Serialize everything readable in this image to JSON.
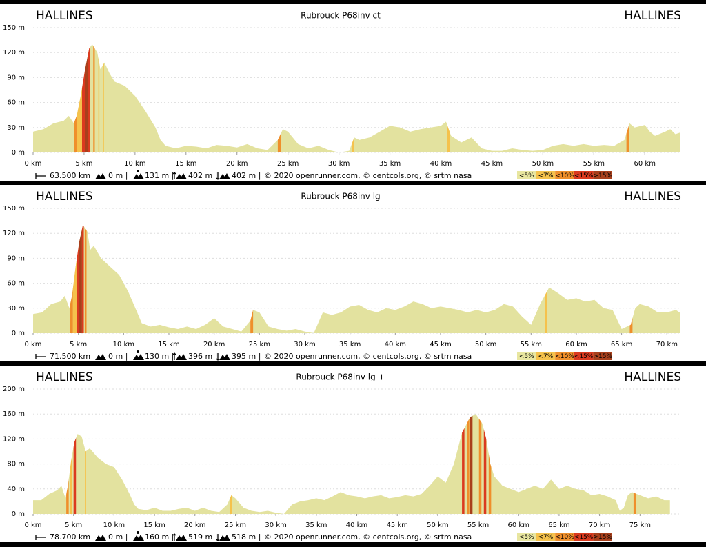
{
  "chart_data": [
    {
      "type": "area",
      "title": "Rubrouck P68inv ct",
      "start": "HALLINES",
      "end": "HALLINES",
      "color": "#e3e29f",
      "x": [
        0,
        1,
        2,
        3,
        3.5,
        4,
        4.3,
        4.7,
        5.1,
        5.5,
        5.8,
        6.3,
        6.6,
        7,
        7.5,
        8,
        9,
        10,
        11,
        12,
        12.5,
        13,
        14,
        15,
        16,
        17,
        18,
        19,
        20,
        21,
        22,
        23,
        24,
        24.5,
        25,
        26,
        27,
        28,
        29,
        30,
        31,
        31.5,
        32,
        33,
        34,
        35,
        36,
        37,
        38,
        39,
        40,
        40.5,
        41,
        42,
        43,
        44,
        45,
        46,
        47,
        48,
        49,
        50,
        51,
        52,
        53,
        54,
        55,
        56,
        57,
        58,
        58.5,
        59,
        60,
        60.5,
        61,
        62,
        62.5,
        63,
        63.5
      ],
      "values": [
        25,
        28,
        35,
        38,
        44,
        35,
        45,
        70,
        100,
        125,
        130,
        120,
        100,
        108,
        95,
        85,
        80,
        68,
        50,
        30,
        15,
        8,
        5,
        8,
        7,
        5,
        9,
        8,
        6,
        10,
        5,
        3,
        15,
        28,
        25,
        10,
        5,
        8,
        3,
        0,
        2,
        18,
        15,
        18,
        25,
        32,
        30,
        25,
        28,
        30,
        32,
        37,
        20,
        12,
        18,
        5,
        2,
        2,
        5,
        3,
        2,
        3,
        8,
        10,
        8,
        10,
        8,
        9,
        8,
        15,
        35,
        30,
        33,
        25,
        20,
        25,
        28,
        22,
        24
      ],
      "xlim": [
        0,
        63.5
      ],
      "ylim": [
        0,
        150
      ],
      "yticks": [
        {
          "value": 0,
          "label": "0 m"
        },
        {
          "value": 30,
          "label": "30 m"
        },
        {
          "value": 60,
          "label": "60 m"
        },
        {
          "value": 90,
          "label": "90 m"
        },
        {
          "value": 120,
          "label": "120 m"
        },
        {
          "value": 150,
          "label": "150 m"
        }
      ],
      "xticks": [
        {
          "value": 0,
          "label": "0 km"
        },
        {
          "value": 5,
          "label": "5 km"
        },
        {
          "value": 10,
          "label": "10 km"
        },
        {
          "value": 15,
          "label": "15 km"
        },
        {
          "value": 20,
          "label": "20 km"
        },
        {
          "value": 25,
          "label": "25 km"
        },
        {
          "value": 30,
          "label": "30 km"
        },
        {
          "value": 35,
          "label": "35 km"
        },
        {
          "value": 40,
          "label": "40 km"
        },
        {
          "value": 45,
          "label": "45 km"
        },
        {
          "value": 50,
          "label": "50 km"
        },
        {
          "value": 55,
          "label": "55 km"
        },
        {
          "value": 60,
          "label": "60 km"
        }
      ],
      "grid": true,
      "bands": [
        {
          "x0": 4.0,
          "x1": 4.3,
          "color": "#ef8f2b"
        },
        {
          "x0": 4.3,
          "x1": 4.8,
          "color": "#f5c24c"
        },
        {
          "x0": 4.8,
          "x1": 5.1,
          "color": "#db3a1f"
        },
        {
          "x0": 5.1,
          "x1": 5.35,
          "color": "#a8401c"
        },
        {
          "x0": 5.35,
          "x1": 5.6,
          "color": "#db3a1f"
        },
        {
          "x0": 5.9,
          "x1": 6.05,
          "color": "#ef8f2b"
        },
        {
          "x0": 6.4,
          "x1": 6.5,
          "color": "#f5c24c"
        },
        {
          "x0": 6.85,
          "x1": 6.95,
          "color": "#f5c24c"
        },
        {
          "x0": 24.0,
          "x1": 24.3,
          "color": "#ef8f2b"
        },
        {
          "x0": 31.3,
          "x1": 31.5,
          "color": "#f5c24c"
        },
        {
          "x0": 40.6,
          "x1": 40.85,
          "color": "#f5c24c"
        },
        {
          "x0": 58.2,
          "x1": 58.45,
          "color": "#ef8f2b"
        }
      ],
      "stats": [
        "63.500 km |",
        "0 m |",
        "131 m |",
        "402 m |",
        "402 m |"
      ],
      "credits": "© 2020 openrunner.com, © centcols.org, © srtm nasa",
      "legend": [
        {
          "label": "<5%",
          "color": "#e8e6a0"
        },
        {
          "label": "<7%",
          "color": "#f5c24c"
        },
        {
          "label": "<10%",
          "color": "#ef8f2b"
        },
        {
          "label": "<15%",
          "color": "#db3a1f"
        },
        {
          "label": ">15%",
          "color": "#a8401c"
        }
      ]
    },
    {
      "type": "area",
      "title": "Rubrouck P68inv lg",
      "start": "HALLINES",
      "end": "HALLINES",
      "color": "#e3e29f",
      "x": [
        0,
        1,
        2,
        3,
        3.5,
        4,
        4.3,
        4.7,
        5.1,
        5.5,
        6,
        6.3,
        6.7,
        7.5,
        8.5,
        9.5,
        10.5,
        11.5,
        12,
        13,
        14,
        15,
        16,
        17,
        18,
        19,
        20,
        21,
        22,
        23,
        24,
        24.3,
        25,
        26,
        27,
        28,
        29,
        30,
        31,
        32,
        33,
        34,
        35,
        36,
        37,
        38,
        39,
        40,
        41,
        42,
        43,
        44,
        45,
        46,
        47,
        48,
        49,
        50,
        51,
        52,
        53,
        54,
        55,
        56,
        57,
        58,
        59,
        60,
        61,
        62,
        63,
        64,
        65,
        66,
        66.5,
        67,
        68,
        69,
        70,
        71,
        71.5
      ],
      "values": [
        23,
        25,
        35,
        38,
        45,
        30,
        45,
        80,
        110,
        130,
        122,
        100,
        105,
        90,
        80,
        70,
        50,
        25,
        12,
        8,
        10,
        7,
        5,
        8,
        5,
        10,
        18,
        8,
        5,
        2,
        15,
        28,
        25,
        8,
        5,
        3,
        5,
        2,
        0,
        25,
        22,
        25,
        32,
        34,
        28,
        25,
        30,
        28,
        32,
        38,
        35,
        30,
        32,
        30,
        28,
        25,
        28,
        25,
        28,
        35,
        32,
        20,
        10,
        35,
        55,
        48,
        40,
        42,
        38,
        40,
        30,
        28,
        5,
        10,
        30,
        35,
        32,
        25,
        25,
        28,
        24
      ],
      "xlim": [
        0,
        71.5
      ],
      "ylim": [
        0,
        150
      ],
      "yticks": [
        {
          "value": 0,
          "label": "0 m"
        },
        {
          "value": 30,
          "label": "30 m"
        },
        {
          "value": 60,
          "label": "60 m"
        },
        {
          "value": 90,
          "label": "90 m"
        },
        {
          "value": 120,
          "label": "120 m"
        },
        {
          "value": 150,
          "label": "150 m"
        }
      ],
      "xticks": [
        {
          "value": 0,
          "label": "0 km"
        },
        {
          "value": 5,
          "label": "5 km"
        },
        {
          "value": 10,
          "label": "10 km"
        },
        {
          "value": 15,
          "label": "15 km"
        },
        {
          "value": 20,
          "label": "20 km"
        },
        {
          "value": 25,
          "label": "25 km"
        },
        {
          "value": 30,
          "label": "30 km"
        },
        {
          "value": 35,
          "label": "35 km"
        },
        {
          "value": 40,
          "label": "40 km"
        },
        {
          "value": 45,
          "label": "45 km"
        },
        {
          "value": 50,
          "label": "50 km"
        },
        {
          "value": 55,
          "label": "55 km"
        },
        {
          "value": 60,
          "label": "60 km"
        },
        {
          "value": 65,
          "label": "65 km"
        },
        {
          "value": 70,
          "label": "70 km"
        }
      ],
      "grid": true,
      "bands": [
        {
          "x0": 4.1,
          "x1": 4.4,
          "color": "#ef8f2b"
        },
        {
          "x0": 4.4,
          "x1": 4.8,
          "color": "#f5c24c"
        },
        {
          "x0": 4.8,
          "x1": 5.1,
          "color": "#db3a1f"
        },
        {
          "x0": 5.1,
          "x1": 5.4,
          "color": "#a8401c"
        },
        {
          "x0": 5.4,
          "x1": 5.6,
          "color": "#db3a1f"
        },
        {
          "x0": 5.7,
          "x1": 5.9,
          "color": "#ef8f2b"
        },
        {
          "x0": 24.0,
          "x1": 24.3,
          "color": "#ef8f2b"
        },
        {
          "x0": 56.5,
          "x1": 56.8,
          "color": "#f5c24c"
        },
        {
          "x0": 65.9,
          "x1": 66.2,
          "color": "#ef8f2b"
        }
      ],
      "stats": [
        "71.500 km |",
        "0 m |",
        "130 m |",
        "396 m |",
        "395 m |"
      ],
      "credits": "© 2020 openrunner.com, © centcols.org, © srtm nasa",
      "legend": [
        {
          "label": "<5%",
          "color": "#e8e6a0"
        },
        {
          "label": "<7%",
          "color": "#f5c24c"
        },
        {
          "label": "<10%",
          "color": "#ef8f2b"
        },
        {
          "label": "<15%",
          "color": "#db3a1f"
        },
        {
          "label": ">15%",
          "color": "#a8401c"
        }
      ]
    },
    {
      "type": "area",
      "title": "Rubrouck P68inv lg +",
      "start": "HALLINES",
      "end": "HALLINES",
      "color": "#e3e29f",
      "x": [
        0,
        1,
        2,
        3,
        3.5,
        4,
        4.3,
        4.7,
        5.1,
        5.5,
        6,
        6.5,
        7,
        8,
        9,
        10,
        11,
        12,
        12.5,
        13,
        14,
        15,
        16,
        17,
        18,
        19,
        20,
        21,
        22,
        23,
        24,
        24.5,
        25,
        26,
        27,
        28,
        29,
        30,
        31,
        32,
        33,
        34,
        35,
        36,
        37,
        38,
        39,
        40,
        41,
        42,
        43,
        44,
        45,
        46,
        47,
        48,
        49,
        50,
        51,
        52,
        53,
        54,
        54.7,
        55.5,
        56,
        56.5,
        57,
        58,
        59,
        60,
        61,
        62,
        63,
        64,
        65,
        66,
        67,
        68,
        69,
        70,
        71,
        72,
        72.5,
        73,
        73.5,
        74,
        75,
        76,
        77,
        78,
        78.7
      ],
      "values": [
        22,
        22,
        32,
        38,
        45,
        25,
        45,
        85,
        115,
        128,
        124,
        100,
        105,
        90,
        80,
        75,
        55,
        30,
        15,
        8,
        6,
        10,
        5,
        5,
        8,
        10,
        5,
        10,
        5,
        3,
        15,
        30,
        25,
        10,
        5,
        3,
        5,
        2,
        0,
        15,
        20,
        22,
        25,
        22,
        28,
        35,
        30,
        28,
        25,
        28,
        30,
        25,
        27,
        30,
        28,
        32,
        45,
        60,
        50,
        80,
        130,
        155,
        160,
        145,
        120,
        80,
        60,
        45,
        40,
        35,
        40,
        45,
        40,
        55,
        40,
        45,
        40,
        38,
        30,
        32,
        28,
        22,
        5,
        10,
        30,
        35,
        30,
        25,
        28,
        22,
        22
      ],
      "xlim": [
        0,
        80
      ],
      "ylim": [
        0,
        200
      ],
      "yticks": [
        {
          "value": 0,
          "label": "0 m"
        },
        {
          "value": 40,
          "label": "40 m"
        },
        {
          "value": 80,
          "label": "80 m"
        },
        {
          "value": 120,
          "label": "120 m"
        },
        {
          "value": 160,
          "label": "160 m"
        },
        {
          "value": 200,
          "label": "200 m"
        }
      ],
      "xticks": [
        {
          "value": 0,
          "label": "0 km"
        },
        {
          "value": 5,
          "label": "5 km"
        },
        {
          "value": 10,
          "label": "10 km"
        },
        {
          "value": 15,
          "label": "15 km"
        },
        {
          "value": 20,
          "label": "20 km"
        },
        {
          "value": 25,
          "label": "25 km"
        },
        {
          "value": 30,
          "label": "30 km"
        },
        {
          "value": 35,
          "label": "35 km"
        },
        {
          "value": 40,
          "label": "40 km"
        },
        {
          "value": 45,
          "label": "45 km"
        },
        {
          "value": 50,
          "label": "50 km"
        },
        {
          "value": 55,
          "label": "55 km"
        },
        {
          "value": 60,
          "label": "60 km"
        },
        {
          "value": 65,
          "label": "65 km"
        },
        {
          "value": 70,
          "label": "70 km"
        },
        {
          "value": 75,
          "label": "75 km"
        }
      ],
      "grid": true,
      "bands": [
        {
          "x0": 4.1,
          "x1": 4.4,
          "color": "#ef8f2b"
        },
        {
          "x0": 4.6,
          "x1": 4.8,
          "color": "#f5c24c"
        },
        {
          "x0": 5.0,
          "x1": 5.3,
          "color": "#db3a1f"
        },
        {
          "x0": 6.4,
          "x1": 6.55,
          "color": "#f5c24c"
        },
        {
          "x0": 24.3,
          "x1": 24.6,
          "color": "#f5c24c"
        },
        {
          "x0": 53.0,
          "x1": 53.3,
          "color": "#db3a1f"
        },
        {
          "x0": 53.6,
          "x1": 53.9,
          "color": "#ef8f2b"
        },
        {
          "x0": 54.0,
          "x1": 54.3,
          "color": "#a8401c"
        },
        {
          "x0": 55.1,
          "x1": 55.4,
          "color": "#ef8f2b"
        },
        {
          "x0": 55.7,
          "x1": 56.0,
          "color": "#db3a1f"
        },
        {
          "x0": 56.3,
          "x1": 56.6,
          "color": "#ef8f2b"
        },
        {
          "x0": 74.2,
          "x1": 74.5,
          "color": "#ef8f2b"
        }
      ],
      "stats": [
        "78.700 km |",
        "0 m |",
        "160 m |",
        "519 m |",
        "518 m |"
      ],
      "credits": "© 2020 openrunner.com, © centcols.org, © srtm nasa",
      "legend": [
        {
          "label": "<5%",
          "color": "#e8e6a0"
        },
        {
          "label": "<7%",
          "color": "#f5c24c"
        },
        {
          "label": "<10%",
          "color": "#ef8f2b"
        },
        {
          "label": "<15%",
          "color": "#db3a1f"
        },
        {
          "label": ">15%",
          "color": "#a8401c"
        }
      ]
    }
  ]
}
